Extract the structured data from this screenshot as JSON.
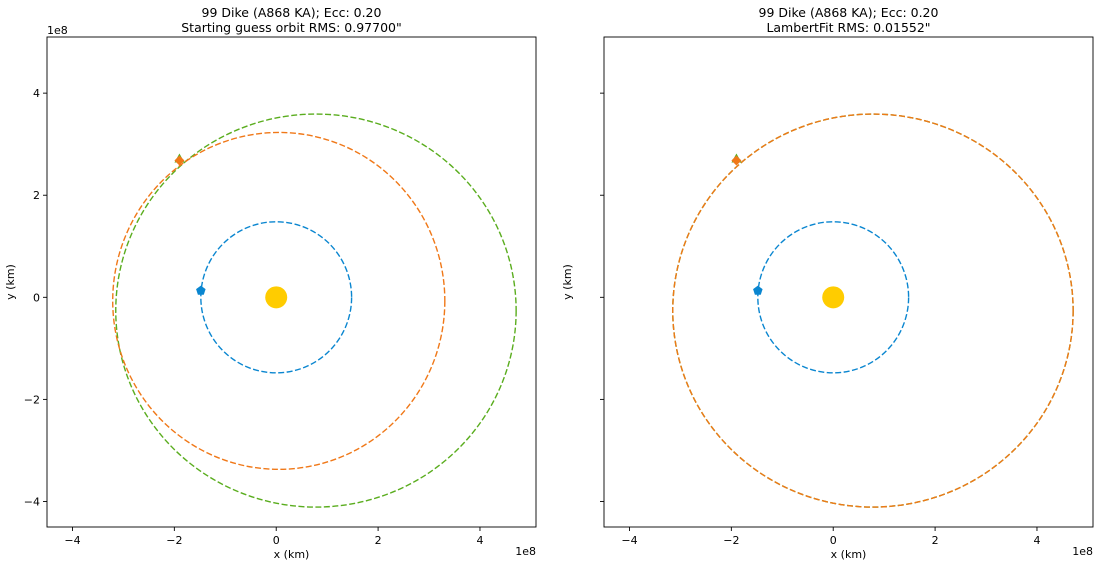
{
  "chart_data": [
    {
      "type": "line",
      "title": "99 Dike (A868 KA); Ecc: 0.20",
      "subtitle": "Starting guess orbit RMS: 0.97700\"",
      "xlabel": "x (km)",
      "ylabel": "y (km)",
      "axis_multiplier": "1e8",
      "xlim": [
        -4.5,
        5.1
      ],
      "ylim": [
        -4.5,
        5.1
      ],
      "xticks": [
        -4,
        -2,
        0,
        2,
        4
      ],
      "yticks": [
        -4,
        -2,
        0,
        2,
        4
      ],
      "xtick_labels": [
        "−4",
        "−2",
        "0",
        "2",
        "4"
      ],
      "ytick_labels": [
        "−4",
        "−2",
        "0",
        "2",
        "4"
      ],
      "grid": false,
      "sun": {
        "x": 0,
        "y": 0,
        "color": "#ffcc00"
      },
      "series": [
        {
          "style": "dashed",
          "color": "#0a86d0",
          "marker": "pentagon",
          "marker_at": {
            "x": -1.48,
            "y": 0.13
          },
          "orbit": {
            "cx": 0.0,
            "cy": 0.0,
            "rx": 1.48,
            "ry": 1.48
          }
        },
        {
          "style": "dashed",
          "color": "#5aad1e",
          "marker": "triangle",
          "marker_at": {
            "x": -1.9,
            "y": 2.72
          },
          "orbit": {
            "cx": 0.78,
            "cy": -0.26,
            "rx": 3.93,
            "ry": 3.85
          }
        },
        {
          "style": "dashed",
          "color": "#f07818",
          "marker": "diamond",
          "marker_at": {
            "x": -1.9,
            "y": 2.68
          },
          "orbit": {
            "cx": 0.05,
            "cy": -0.07,
            "rx": 3.26,
            "ry": 3.3
          }
        }
      ]
    },
    {
      "type": "line",
      "title": "99 Dike (A868 KA); Ecc: 0.20",
      "subtitle": "LambertFit RMS: 0.01552\"",
      "xlabel": "x (km)",
      "ylabel": "y (km)",
      "axis_multiplier": "1e8",
      "xlim": [
        -4.5,
        5.1
      ],
      "ylim": [
        -4.5,
        5.1
      ],
      "xticks": [
        -4,
        -2,
        0,
        2,
        4
      ],
      "yticks": [
        -4,
        -2,
        0,
        2,
        4
      ],
      "xtick_labels": [
        "−4",
        "−2",
        "0",
        "2",
        "4"
      ],
      "ytick_labels": [
        "",
        "",
        "",
        "",
        ""
      ],
      "grid": false,
      "sun": {
        "x": 0,
        "y": 0,
        "color": "#ffcc00"
      },
      "series": [
        {
          "style": "dashed",
          "color": "#0a86d0",
          "marker": "pentagon",
          "marker_at": {
            "x": -1.48,
            "y": 0.13
          },
          "orbit": {
            "cx": 0.0,
            "cy": 0.0,
            "rx": 1.48,
            "ry": 1.48
          }
        },
        {
          "style": "dashed",
          "color": "#5aad1e",
          "marker": "triangle",
          "marker_at": {
            "x": -1.9,
            "y": 2.72
          },
          "orbit": {
            "cx": 0.78,
            "cy": -0.26,
            "rx": 3.93,
            "ry": 3.85
          }
        },
        {
          "style": "dashed",
          "color": "#f07818",
          "marker": "diamond",
          "marker_at": {
            "x": -1.9,
            "y": 2.68
          },
          "orbit": {
            "cx": 0.78,
            "cy": -0.26,
            "rx": 3.93,
            "ry": 3.85
          }
        }
      ]
    }
  ]
}
